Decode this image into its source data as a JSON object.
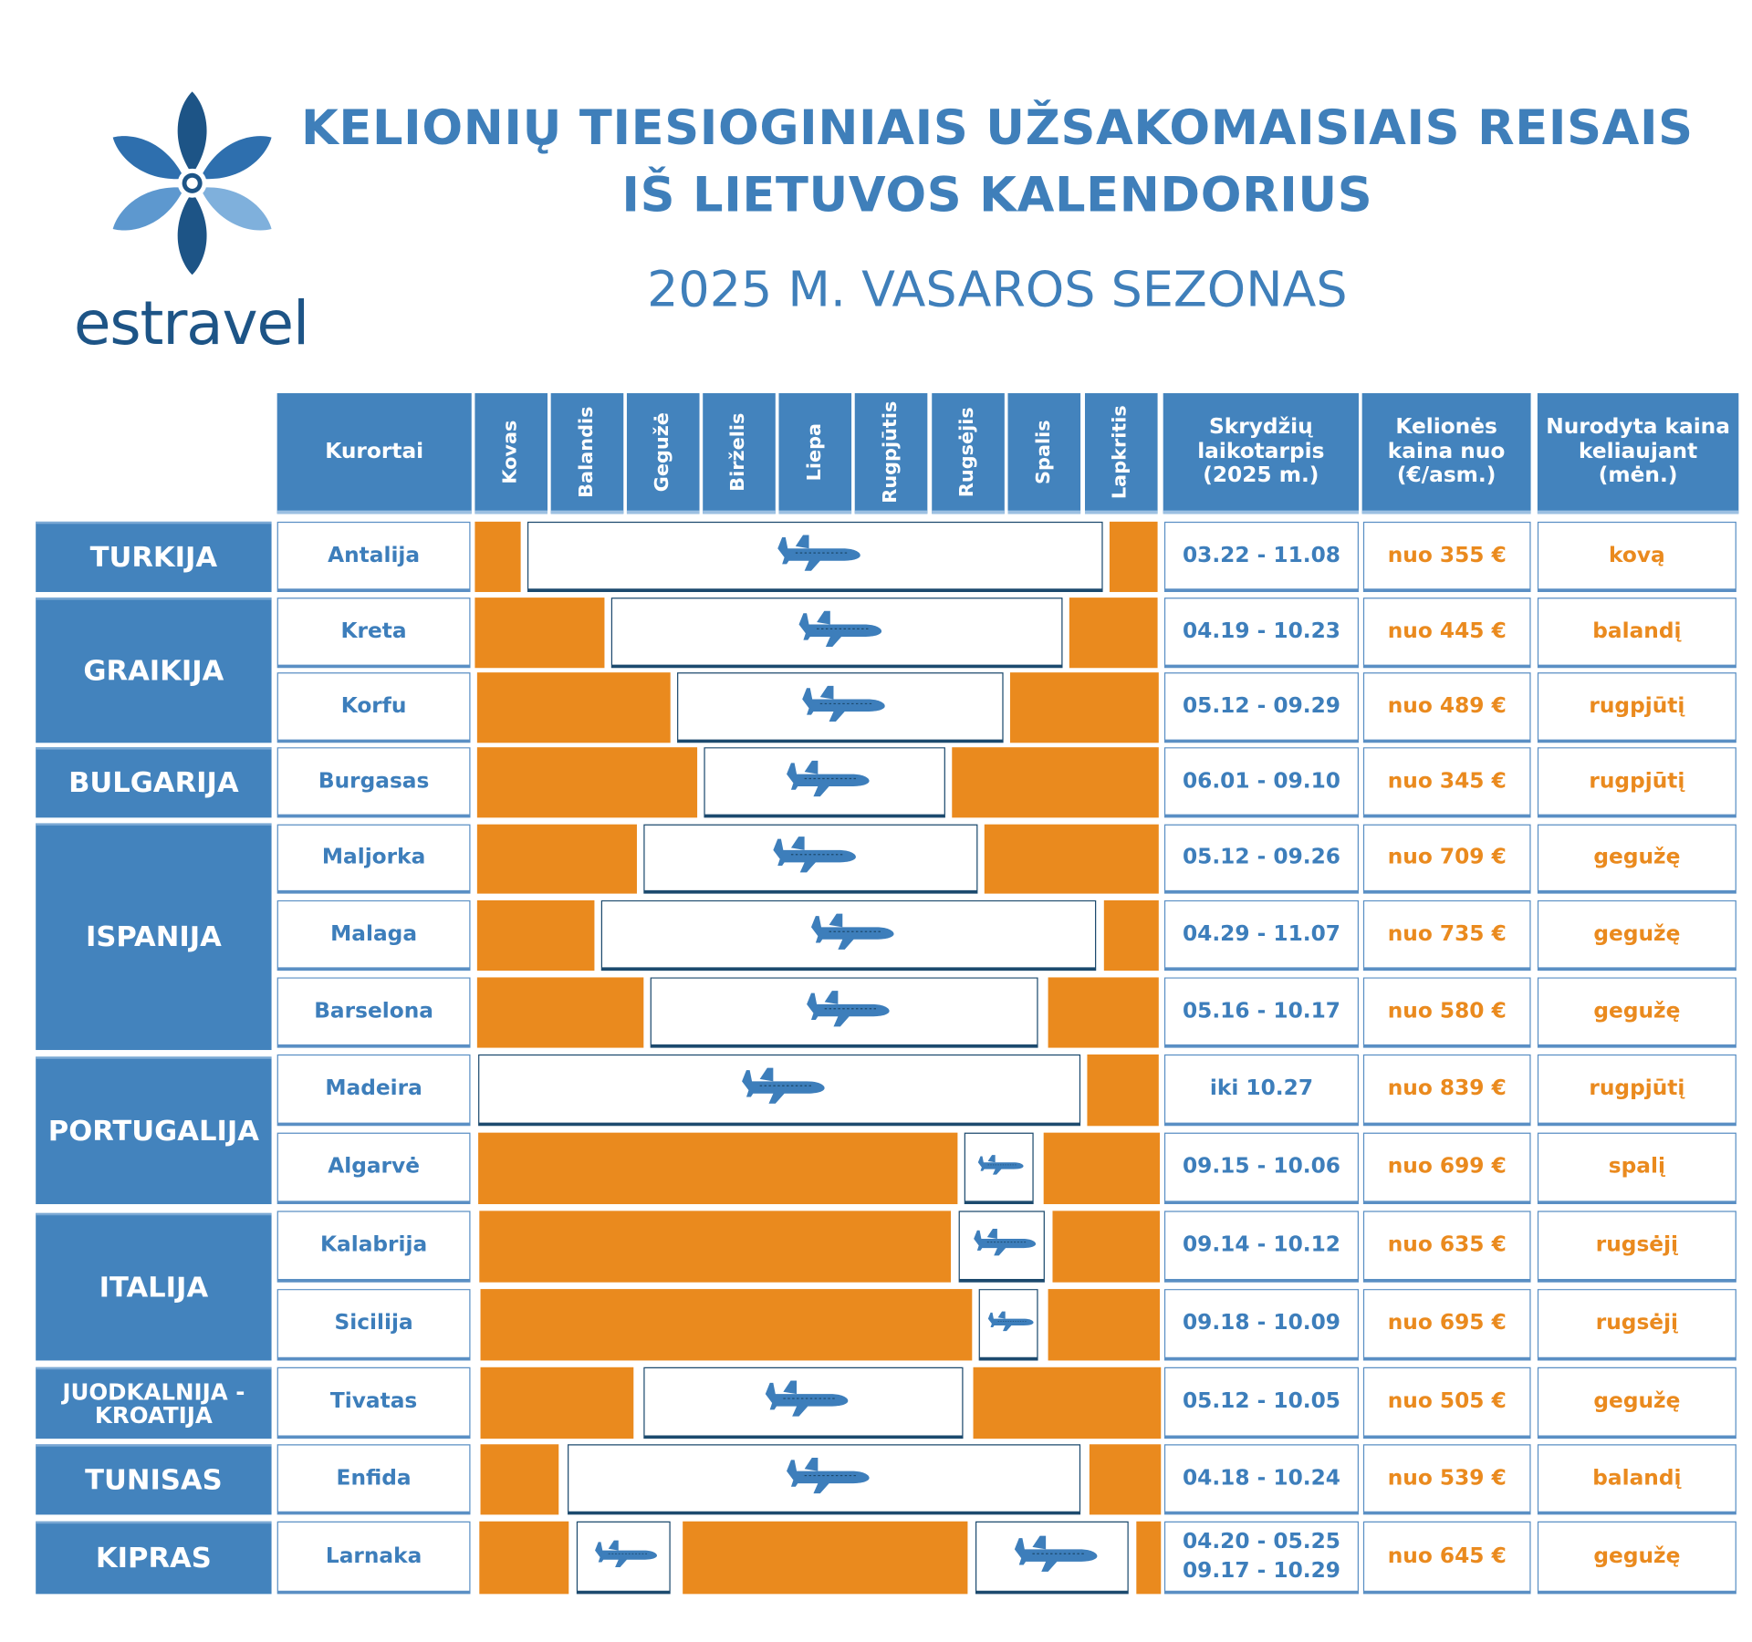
{
  "title_line1": "KELIONIŲ TIESIOGINIAIS UŽSAKOMAISIAIS REISAIS",
  "title_line2": "IŠ LIETUVOS KALENDORIUS",
  "subtitle": "2025 M. VASAROS SEZONAS",
  "logo": {
    "text": "estravel"
  },
  "colors": {
    "blue": "#4383bd",
    "orange": "#ea8a1e",
    "dark": "#1c4a6e"
  },
  "headers": {
    "resorts": "Kurortai",
    "months": [
      "Kovas",
      "Balandis",
      "Gegužė",
      "Birželis",
      "Liepa",
      "Rugpjūtis",
      "Rugsėjis",
      "Spalis",
      "Lapkritis"
    ],
    "period": "Skrydžių laikotarpis (2025 m.)",
    "price": "Kelionės kaina nuo (€/asm.)",
    "price_month": "Nurodyta kaina keliaujant (mėn.)"
  },
  "countries": [
    "TURKIJA",
    "GRAIKIJA",
    "BULGARIJA",
    "ISPANIJA",
    "PORTUGALIJA",
    "ITALIJA",
    "JUODKALNIJA - KROATIJA",
    "TUNISAS",
    "KIPRAS"
  ],
  "rows": [
    {
      "resort": "Antalija",
      "period": "03.22 - 11.08",
      "price": "nuo 355 €",
      "month": "kovą"
    },
    {
      "resort": "Kreta",
      "period": "04.19 - 10.23",
      "price": "nuo 445 €",
      "month": "balandį"
    },
    {
      "resort": "Korfu",
      "period": "05.12 - 09.29",
      "price": "nuo 489 €",
      "month": "rugpjūtį"
    },
    {
      "resort": "Burgasas",
      "period": "06.01 - 09.10",
      "price": "nuo 345 €",
      "month": "rugpjūtį"
    },
    {
      "resort": "Maljorka",
      "period": "05.12 - 09.26",
      "price": "nuo 709 €",
      "month": "gegužę"
    },
    {
      "resort": "Malaga",
      "period": "04.29 - 11.07",
      "price": "nuo 735 €",
      "month": "gegužę"
    },
    {
      "resort": "Barselona",
      "period": "05.16 - 10.17",
      "price": "nuo 580 €",
      "month": "gegužę"
    },
    {
      "resort": "Madeira",
      "period": "iki 10.27",
      "price": "nuo 839 €",
      "month": "rugpjūtį"
    },
    {
      "resort": "Algarvė",
      "period": "09.15 - 10.06",
      "price": "nuo 699 €",
      "month": "spalį"
    },
    {
      "resort": "Kalabrija",
      "period": "09.14 - 10.12",
      "price": "nuo 635 €",
      "month": "rugsėjį"
    },
    {
      "resort": "Sicilija",
      "period": "09.18 - 10.09",
      "price": "nuo 695 €",
      "month": "rugsėjį"
    },
    {
      "resort": "Tivatas",
      "period": "05.12 - 10.05",
      "price": "nuo 505 €",
      "month": "gegužę"
    },
    {
      "resort": "Enfida",
      "period": "04.18 - 10.24",
      "price": "nuo 539 €",
      "month": "balandį"
    },
    {
      "resort": "Larnaka",
      "period": "04.20 - 05.25\n09.17 - 10.29",
      "price": "nuo 645 €",
      "month": "gegužę"
    }
  ]
}
